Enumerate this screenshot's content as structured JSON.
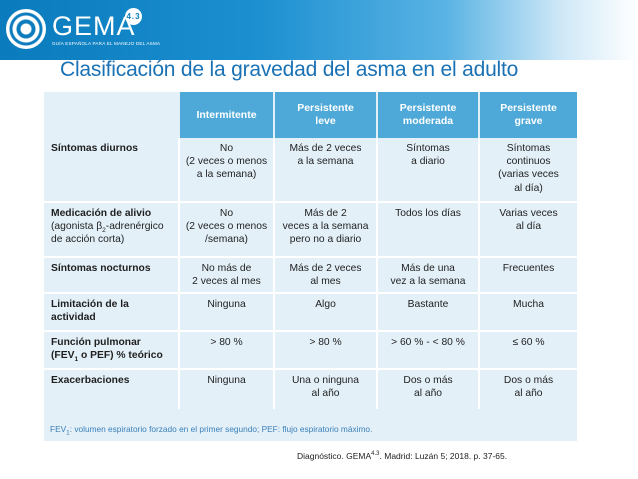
{
  "header": {
    "logo_name": "GEMA",
    "logo_version": "4.3",
    "logo_subtitle": "GUÍA ESPAÑOLA PARA EL MANEJO DEL ASMA",
    "accent_color": "#1a72b5"
  },
  "title": "Clasificación de la gravedad del asma en el adulto",
  "table": {
    "columns": [
      {
        "line1": "Intermitente",
        "line2": ""
      },
      {
        "line1": "Persistente",
        "line2": "leve"
      },
      {
        "line1": "Persistente",
        "line2": "moderada"
      },
      {
        "line1": "Persistente",
        "line2": "grave"
      }
    ],
    "rows": [
      {
        "label": [
          "Síntomas diurnos"
        ],
        "cells": [
          [
            "No",
            "(2 veces o menos",
            "a la semana)"
          ],
          [
            "Más de 2 veces",
            "a la semana"
          ],
          [
            "Síntomas",
            "a diario"
          ],
          [
            "Síntomas",
            "continuos",
            "(varias veces",
            "al día)"
          ]
        ]
      },
      {
        "label": [
          "Medicación de alivio",
          "(agonista β",
          "2",
          "-adrenérgico",
          "de acción corta)"
        ],
        "cells": [
          [
            "No",
            "(2 veces o menos",
            "/semana)"
          ],
          [
            "Más de 2",
            "veces a la semana",
            "pero no a diario"
          ],
          [
            "Todos los días"
          ],
          [
            "Varias veces",
            "al día"
          ]
        ]
      },
      {
        "label": [
          "Síntomas nocturnos"
        ],
        "cells": [
          [
            "No más de",
            "2 veces al mes"
          ],
          [
            "Más de 2 veces",
            "al mes"
          ],
          [
            "Más de una",
            "vez a la semana"
          ],
          [
            "Frecuentes"
          ]
        ]
      },
      {
        "label": [
          "Limitación de la",
          "actividad"
        ],
        "cells": [
          [
            "Ninguna"
          ],
          [
            "Algo"
          ],
          [
            "Bastante"
          ],
          [
            "Mucha"
          ]
        ]
      },
      {
        "label": [
          "Función pulmonar",
          "(FEV",
          "1",
          " o PEF) % teórico"
        ],
        "cells": [
          [
            "> 80 %"
          ],
          [
            "> 80 %"
          ],
          [
            "> 60 % - < 80 %"
          ],
          [
            "≤ 60 %"
          ]
        ]
      },
      {
        "label": [
          "Exacerbaciones"
        ],
        "cells": [
          [
            "Ninguna"
          ],
          [
            "Una o ninguna",
            "al año"
          ],
          [
            "Dos o más",
            "al año"
          ],
          [
            "Dos o más",
            "al año"
          ]
        ]
      }
    ],
    "footnote": [
      "FEV",
      "1",
      ": volumen espiratorio forzado en el primer segundo; PEF: flujo espiratorio máximo."
    ]
  },
  "source": {
    "text": "Diagnóstico. GEMA",
    "sup": "4.3",
    "rest": ". Madrid: Luzán 5; 2018. p. 37-65."
  }
}
